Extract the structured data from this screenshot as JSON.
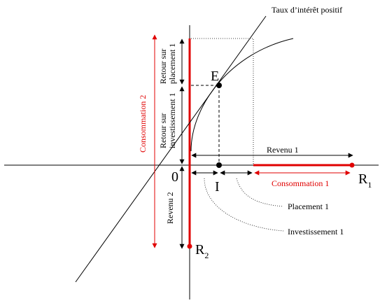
{
  "labels": {
    "taux": "Taux d’intérêt positif",
    "E": "E",
    "O": "0",
    "I": "I",
    "R1": "R",
    "R1_sub": "1",
    "R2": "R",
    "R2_sub": "2",
    "revenu1": "Revenu 1",
    "consommation1": "Consommation 1",
    "placement1": "Placement 1",
    "investissement1": "Investissement 1",
    "revenu2": "Revenu 2",
    "consommation2": "Consommation 2",
    "retour_placement_l1": "Retour sur",
    "retour_placement_l2": "placement 1",
    "retour_invest_l1": "Retour sur",
    "retour_invest_l2": "investissement 1"
  },
  "colors": {
    "axis": "#000000",
    "accent": "#e00000"
  }
}
